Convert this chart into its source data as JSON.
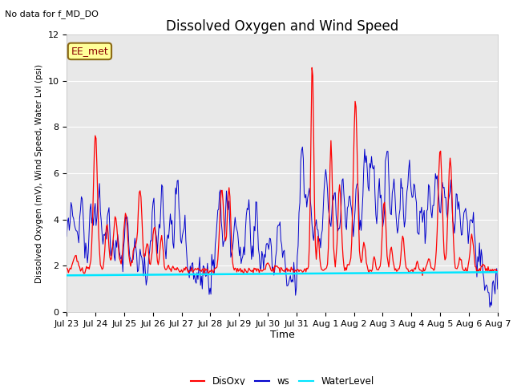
{
  "title": "Dissolved Oxygen and Wind Speed",
  "xlabel": "Time",
  "ylabel": "Dissolved Oxygen (mV), Wind Speed, Water Lvl (psi)",
  "ylim": [
    0,
    12
  ],
  "bg_color": "#e8e8e8",
  "fig_color": "#ffffff",
  "no_data_text": "No data for f_MD_DO",
  "legend_box_text": "EE_met",
  "legend_box_bg": "#ffff99",
  "legend_box_edge": "#8b6914",
  "water_level": 1.62,
  "colors": {
    "DisOxy": "#ff0000",
    "ws": "#0000cc",
    "WaterLevel": "#00e5ff"
  },
  "xtick_labels": [
    "Jul 23",
    "Jul 24",
    "Jul 25",
    "Jul 26",
    "Jul 27",
    "Jul 28",
    "Jul 29",
    "Jul 30",
    "Jul 31",
    "Aug 1",
    "Aug 2",
    "Aug 3",
    "Aug 4",
    "Aug 5",
    "Aug 6",
    "Aug 7"
  ],
  "n_points": 500,
  "seed": 42
}
